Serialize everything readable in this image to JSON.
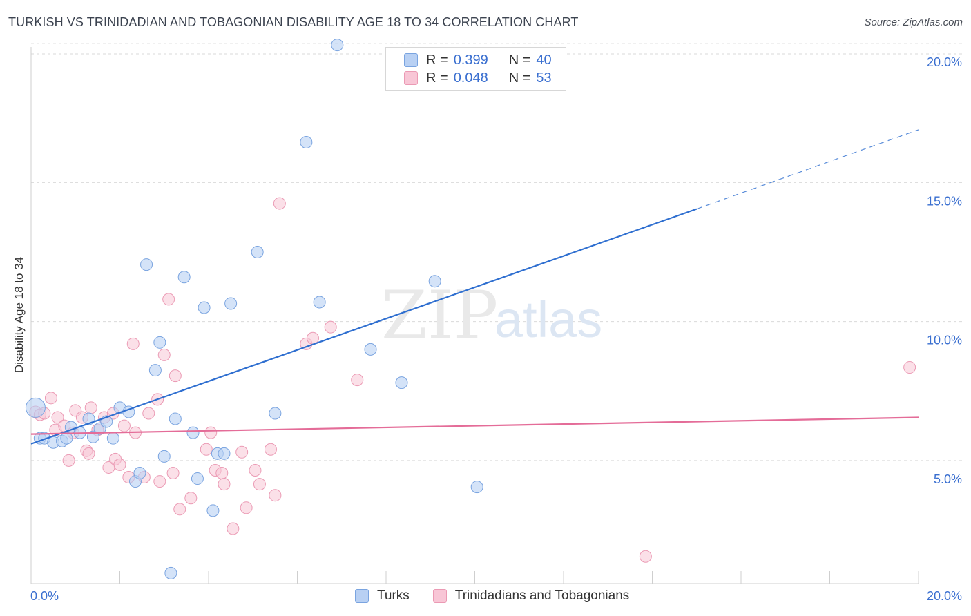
{
  "header": {
    "title": "TURKISH VS TRINIDADIAN AND TOBAGONIAN DISABILITY AGE 18 TO 34 CORRELATION CHART",
    "source": "Source: ZipAtlas.com"
  },
  "watermark": {
    "zip": "ZIP",
    "atlas": "atlas"
  },
  "legend_top": {
    "turks": {
      "r_label": "R =",
      "r_value": "0.399",
      "n_label": "N =",
      "n_value": "40"
    },
    "trini": {
      "r_label": "R =",
      "r_value": "0.048",
      "n_label": "N =",
      "n_value": "53"
    }
  },
  "legend_bottom": {
    "turks": "Turks",
    "trini": "Trinidadians and Tobagonians"
  },
  "colors": {
    "turks_fill": "#b8d0f3",
    "turks_stroke": "#7aa4e0",
    "turks_line": "#2f6fd0",
    "trini_fill": "#f8c6d6",
    "trini_stroke": "#eb9ab4",
    "trini_line": "#e46c98",
    "tick_label": "#3a6fd0",
    "grid": "#d9d9d9"
  },
  "chart_data": {
    "type": "scatter",
    "title": "TURKISH VS TRINIDADIAN AND TOBAGONIAN DISABILITY AGE 18 TO 34 CORRELATION CHART",
    "xlabel": "",
    "ylabel": "Disability Age 18 to 34",
    "xlim": [
      0,
      20
    ],
    "ylim": [
      0.5,
      20.5
    ],
    "x_tick_labels": [
      "0.0%",
      "20.0%"
    ],
    "y_ticks": [
      5,
      10,
      15,
      20
    ],
    "y_tick_labels": [
      "5.0%",
      "10.0%",
      "15.0%",
      "20.0%"
    ],
    "grid": "horizontal dashed",
    "series": [
      {
        "name": "Turks",
        "r": 0.399,
        "n": 40,
        "trend": {
          "x_start": 0,
          "y_start": 5.6,
          "x_solid_end": 15.0,
          "y_solid_end": 14.05,
          "x_end": 20.0,
          "y_end": 16.9
        },
        "points": [
          [
            0.1,
            6.9
          ],
          [
            0.2,
            5.8
          ],
          [
            0.3,
            5.8
          ],
          [
            0.5,
            5.65
          ],
          [
            0.7,
            5.7
          ],
          [
            0.8,
            5.8
          ],
          [
            0.9,
            6.2
          ],
          [
            1.1,
            6.0
          ],
          [
            1.3,
            6.5
          ],
          [
            1.4,
            5.85
          ],
          [
            1.55,
            6.15
          ],
          [
            1.7,
            6.4
          ],
          [
            1.85,
            5.8
          ],
          [
            2.0,
            6.9
          ],
          [
            2.2,
            6.75
          ],
          [
            2.35,
            4.25
          ],
          [
            2.45,
            4.55
          ],
          [
            2.6,
            12.05
          ],
          [
            2.8,
            8.25
          ],
          [
            2.9,
            9.25
          ],
          [
            3.0,
            5.15
          ],
          [
            3.15,
            0.95
          ],
          [
            3.25,
            6.5
          ],
          [
            3.45,
            11.6
          ],
          [
            3.65,
            6.0
          ],
          [
            3.75,
            4.35
          ],
          [
            3.9,
            10.5
          ],
          [
            4.1,
            3.2
          ],
          [
            4.2,
            5.25
          ],
          [
            4.35,
            5.25
          ],
          [
            4.5,
            10.65
          ],
          [
            5.1,
            12.5
          ],
          [
            5.5,
            6.7
          ],
          [
            6.2,
            16.45
          ],
          [
            6.5,
            10.7
          ],
          [
            6.9,
            19.95
          ],
          [
            7.65,
            9.0
          ],
          [
            8.35,
            7.8
          ],
          [
            9.1,
            11.45
          ],
          [
            10.05,
            4.05
          ]
        ]
      },
      {
        "name": "Trinidadians and Tobagonians",
        "r": 0.048,
        "n": 53,
        "trend": {
          "x_start": 0,
          "y_start": 5.95,
          "x_end": 20.0,
          "y_end": 6.55
        },
        "points": [
          [
            0.1,
            6.75
          ],
          [
            0.2,
            6.65
          ],
          [
            0.3,
            6.7
          ],
          [
            0.45,
            7.25
          ],
          [
            0.55,
            6.1
          ],
          [
            0.6,
            6.55
          ],
          [
            0.75,
            6.25
          ],
          [
            0.85,
            5.0
          ],
          [
            0.95,
            6.0
          ],
          [
            1.0,
            6.8
          ],
          [
            1.15,
            6.55
          ],
          [
            1.25,
            5.35
          ],
          [
            1.3,
            5.25
          ],
          [
            1.35,
            6.9
          ],
          [
            1.5,
            6.1
          ],
          [
            1.65,
            6.55
          ],
          [
            1.75,
            4.75
          ],
          [
            1.85,
            6.7
          ],
          [
            1.9,
            5.05
          ],
          [
            2.0,
            4.85
          ],
          [
            2.1,
            6.25
          ],
          [
            2.2,
            4.4
          ],
          [
            2.3,
            9.2
          ],
          [
            2.35,
            6.0
          ],
          [
            2.55,
            4.4
          ],
          [
            2.65,
            6.7
          ],
          [
            2.85,
            7.2
          ],
          [
            2.9,
            4.25
          ],
          [
            3.0,
            8.8
          ],
          [
            3.1,
            10.8
          ],
          [
            3.2,
            4.55
          ],
          [
            3.25,
            8.05
          ],
          [
            3.35,
            3.25
          ],
          [
            3.6,
            3.65
          ],
          [
            3.95,
            5.4
          ],
          [
            4.05,
            6.0
          ],
          [
            4.15,
            4.65
          ],
          [
            4.3,
            4.55
          ],
          [
            4.35,
            4.15
          ],
          [
            4.55,
            2.55
          ],
          [
            4.75,
            5.3
          ],
          [
            4.85,
            3.3
          ],
          [
            5.05,
            4.65
          ],
          [
            5.15,
            4.15
          ],
          [
            5.4,
            5.4
          ],
          [
            5.5,
            3.75
          ],
          [
            5.6,
            14.25
          ],
          [
            6.2,
            9.2
          ],
          [
            6.35,
            9.4
          ],
          [
            6.75,
            9.8
          ],
          [
            7.35,
            7.9
          ],
          [
            13.85,
            1.55
          ],
          [
            19.8,
            8.35
          ]
        ]
      }
    ]
  }
}
